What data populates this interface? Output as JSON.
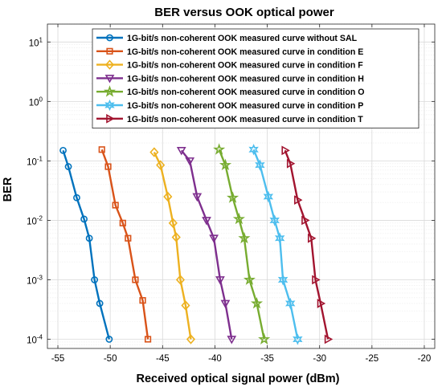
{
  "chart_data": {
    "type": "line",
    "title": "BER versus OOK optical power",
    "xlabel": "Received optical signal power (dBm)",
    "ylabel": "BER",
    "xlim": [
      -56,
      -19
    ],
    "ylim": [
      7e-05,
      20
    ],
    "yscale": "log",
    "grid": true,
    "legend_position": "top-right",
    "x_ticks": [
      -55,
      -50,
      -45,
      -40,
      -35,
      -30,
      -25,
      -20
    ],
    "x_tick_labels": [
      "-55",
      "-50",
      "-45",
      "-40",
      "-35",
      "-30",
      "-25",
      "-20"
    ],
    "y_ticks": [
      0.0001,
      0.001,
      0.01,
      0.1,
      1,
      10
    ],
    "y_tick_labels": [
      {
        "base": "10",
        "exp": "-4"
      },
      {
        "base": "10",
        "exp": "-3"
      },
      {
        "base": "10",
        "exp": "-2"
      },
      {
        "base": "10",
        "exp": "-1"
      },
      {
        "base": "10",
        "exp": "0"
      },
      {
        "base": "10",
        "exp": "1"
      }
    ],
    "series": [
      {
        "name": "1G-bit/s non-coherent OOK measured curve without SAL",
        "color": "#0072BD",
        "marker": "circle",
        "x": [
          -54.5,
          -54.0,
          -53.2,
          -52.5,
          -52.0,
          -51.5,
          -51.0,
          -50.1
        ],
        "y": [
          0.15,
          0.08,
          0.024,
          0.0105,
          0.005,
          0.001,
          0.0004,
          0.0001
        ]
      },
      {
        "name": "1G-bit/s non-coherent OOK measured curve in condition E",
        "color": "#D95319",
        "marker": "square",
        "x": [
          -50.8,
          -50.2,
          -49.5,
          -48.8,
          -48.3,
          -47.6,
          -46.9,
          -46.4
        ],
        "y": [
          0.155,
          0.08,
          0.018,
          0.009,
          0.005,
          0.001,
          0.00045,
          0.0001
        ]
      },
      {
        "name": "1G-bit/s non-coherent OOK measured curve in condition F",
        "color": "#EDB120",
        "marker": "diamond",
        "x": [
          -45.8,
          -45.2,
          -44.5,
          -44.0,
          -43.7,
          -43.3,
          -42.8,
          -42.3
        ],
        "y": [
          0.14,
          0.085,
          0.025,
          0.009,
          0.0052,
          0.001,
          0.00037,
          0.0001
        ]
      },
      {
        "name": "1G-bit/s non-coherent OOK measured curve in condition H",
        "color": "#7E2F8E",
        "marker": "triangle-down",
        "x": [
          -43.2,
          -42.4,
          -41.7,
          -40.8,
          -40.1,
          -39.5,
          -39.0,
          -38.4
        ],
        "y": [
          0.15,
          0.1,
          0.025,
          0.01,
          0.005,
          0.001,
          0.0004,
          0.0001
        ]
      },
      {
        "name": "1G-bit/s non-coherent OOK measured curve in condition O",
        "color": "#77AC30",
        "marker": "pentagram",
        "x": [
          -39.6,
          -39.0,
          -38.3,
          -37.7,
          -37.2,
          -36.7,
          -36.0,
          -35.3
        ],
        "y": [
          0.155,
          0.085,
          0.024,
          0.0105,
          0.005,
          0.001,
          0.0004,
          0.0001
        ]
      },
      {
        "name": "1G-bit/s non-coherent OOK measured curve in condition P",
        "color": "#4DBEEE",
        "marker": "hexagram",
        "x": [
          -36.3,
          -35.7,
          -34.9,
          -34.3,
          -33.8,
          -33.5,
          -32.8,
          -32.1
        ],
        "y": [
          0.155,
          0.085,
          0.025,
          0.01,
          0.005,
          0.001,
          0.0004,
          0.0001
        ]
      },
      {
        "name": "1G-bit/s non-coherent OOK measured curve in condition T",
        "color": "#A2142F",
        "marker": "triangle-right",
        "x": [
          -33.3,
          -32.8,
          -32.1,
          -31.4,
          -30.8,
          -30.4,
          -29.9,
          -29.2
        ],
        "y": [
          0.15,
          0.09,
          0.022,
          0.01,
          0.005,
          0.001,
          0.0004,
          0.0001
        ]
      }
    ]
  }
}
